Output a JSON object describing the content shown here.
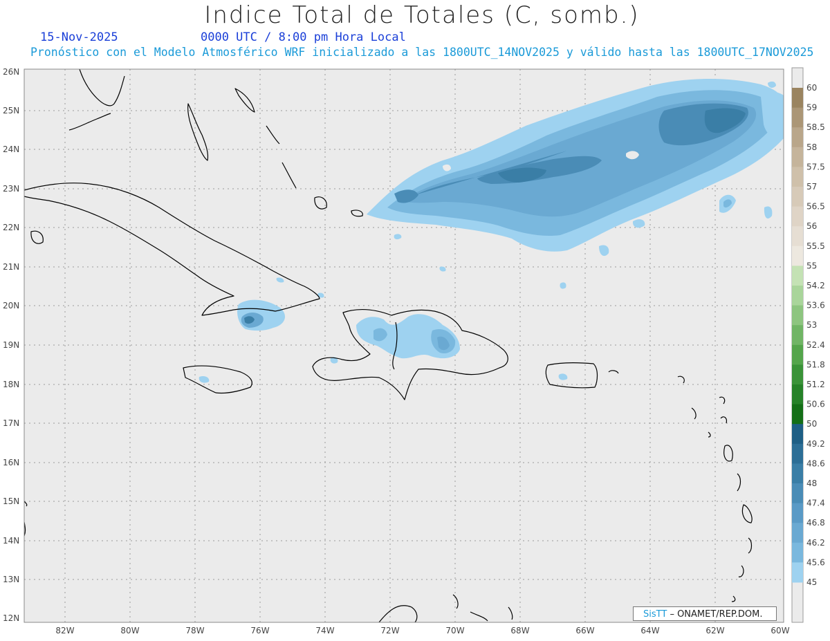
{
  "header": {
    "title": "Indice Total de Totales (C, somb.)",
    "date": "15-Nov-2025",
    "time": "0000 UTC / 8:00 pm Hora Local",
    "model_info": "Pronóstico con el Modelo Atmosférico WRF inicializado a las 1800UTC_14NOV2025 y válido hasta las  1800UTC_17NOV2025"
  },
  "map": {
    "background_color": "#ebebeb",
    "grid_style": "dotted",
    "lat_labels": [
      "26N",
      "25N",
      "24N",
      "23N",
      "22N",
      "21N",
      "20N",
      "19N",
      "18N",
      "17N",
      "16N",
      "15N",
      "14N",
      "13N",
      "12N"
    ],
    "lon_labels": [
      "82W",
      "80W",
      "78W",
      "76W",
      "74W",
      "72W",
      "70W",
      "68W",
      "66W",
      "64W",
      "62W",
      "60W"
    ]
  },
  "colorbar": {
    "labels": [
      "60",
      "59",
      "58.5",
      "58",
      "57.5",
      "57",
      "56.5",
      "56",
      "55.5",
      "55",
      "54.2",
      "53.6",
      "53",
      "52.4",
      "51.8",
      "51.2",
      "50.6",
      "50",
      "49.2",
      "48.6",
      "48",
      "47.4",
      "46.8",
      "46.2",
      "45.6",
      "45"
    ],
    "colors": [
      "#9a8460",
      "#ab9676",
      "#b9a68a",
      "#c5b49b",
      "#cfc0aa",
      "#d7cab8",
      "#dfd4c6",
      "#e6ded3",
      "#ede8df",
      "#c4e2b4",
      "#a9d59a",
      "#8dc57f",
      "#70b565",
      "#54a54b",
      "#3a9338",
      "#268228",
      "#146f17",
      "#1e5f85",
      "#2c6e96",
      "#3a7ea6",
      "#4a8cb6",
      "#5a9ac6",
      "#6aa9d2",
      "#7ab8de",
      "#9ed2f0"
    ]
  },
  "credit": {
    "brand": "SisTT",
    "org": "– ONAMET/REP.DOM."
  }
}
